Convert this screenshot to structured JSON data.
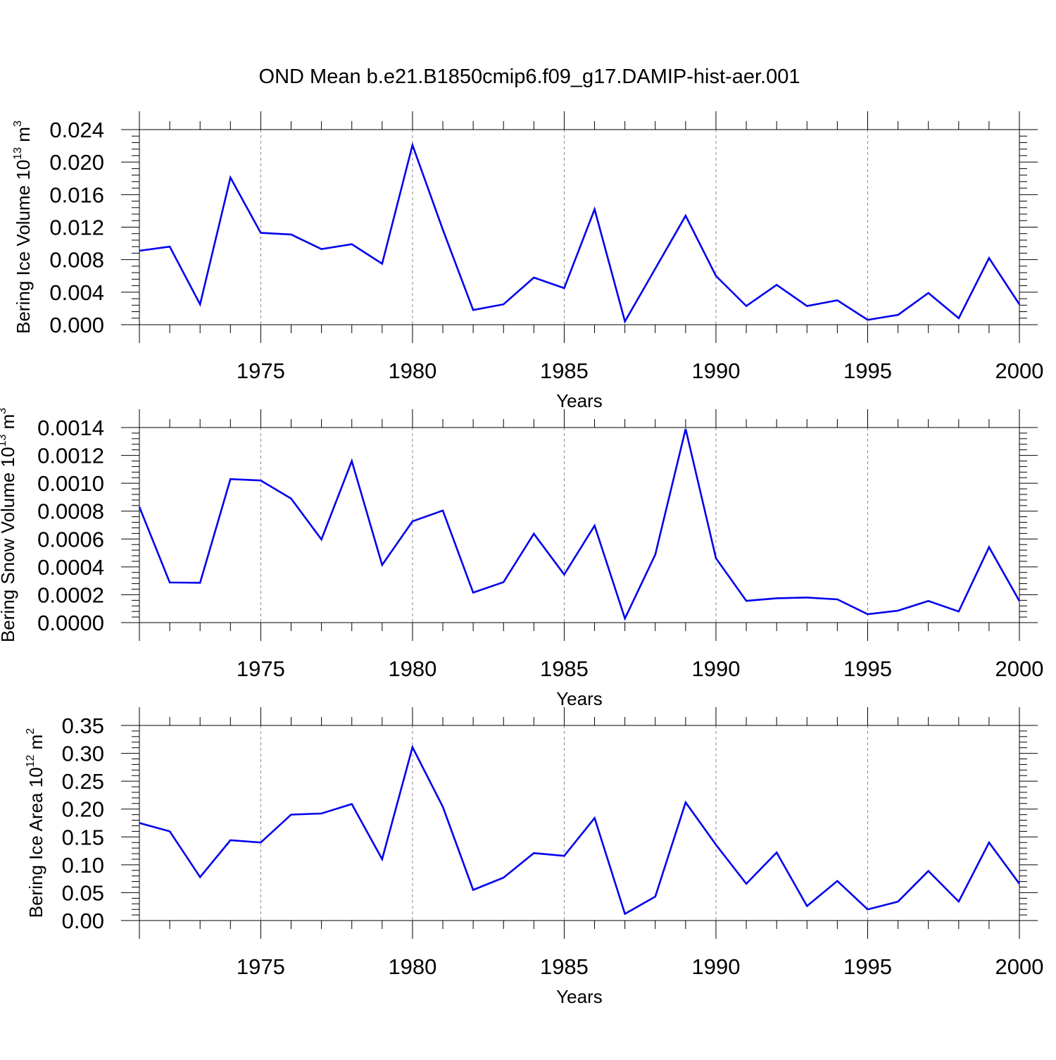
{
  "title": "OND Mean b.e21.B1850cmip6.f09_g17.DAMIP-hist-aer.001",
  "chart_data": [
    {
      "type": "line",
      "title": "",
      "xlabel": "Years",
      "ylabel": {
        "text": "Bering Ice Volume 10",
        "exp": "13",
        "unit": " m",
        "unit_exp": "3"
      },
      "xlim": [
        1971,
        2000
      ],
      "ylim": [
        0.0,
        0.024
      ],
      "xticks": [
        1975,
        1980,
        1985,
        1990,
        1995,
        2000
      ],
      "xtick_labels": [
        "1975",
        "1980",
        "1985",
        "1990",
        "1995",
        "2000"
      ],
      "yticks": [
        0.0,
        0.004,
        0.008,
        0.012,
        0.016,
        0.02,
        0.024
      ],
      "ytick_labels": [
        "0.000",
        "0.004",
        "0.008",
        "0.012",
        "0.016",
        "0.020",
        "0.024"
      ],
      "grid": "vertical dashed at labeled years",
      "color": "#0000ee",
      "series": [
        {
          "x": [
            1971,
            1972,
            1973,
            1974,
            1975,
            1976,
            1977,
            1978,
            1979,
            1980,
            1981,
            1982,
            1983,
            1984,
            1985,
            1986,
            1987,
            1988,
            1989,
            1990,
            1991,
            1992,
            1993,
            1994,
            1995,
            1996,
            1997,
            1998,
            1999,
            2000
          ],
          "values": [
            0.0091,
            0.0096,
            0.0025,
            0.0181,
            0.0113,
            0.0111,
            0.0093,
            0.0099,
            0.0075,
            0.0221,
            0.0117,
            0.0018,
            0.0025,
            0.0058,
            0.0045,
            0.0142,
            0.0004,
            0.0069,
            0.0134,
            0.006,
            0.0023,
            0.0049,
            0.0023,
            0.003,
            0.0006,
            0.0012,
            0.0039,
            0.0008,
            0.0082,
            0.0025
          ]
        }
      ]
    },
    {
      "type": "line",
      "title": "",
      "xlabel": "Years",
      "ylabel": {
        "text": "Bering Snow Volume 10",
        "exp": "13",
        "unit": " m",
        "unit_exp": "3"
      },
      "xlim": [
        1971,
        2000
      ],
      "ylim": [
        0.0,
        0.0014
      ],
      "xticks": [
        1975,
        1980,
        1985,
        1990,
        1995,
        2000
      ],
      "xtick_labels": [
        "1975",
        "1980",
        "1985",
        "1990",
        "1995",
        "2000"
      ],
      "yticks": [
        0.0,
        0.0002,
        0.0004,
        0.0006,
        0.0008,
        0.001,
        0.0012,
        0.0014
      ],
      "ytick_labels": [
        "0.0000",
        "0.0002",
        "0.0004",
        "0.0006",
        "0.0008",
        "0.0010",
        "0.0012",
        "0.0014"
      ],
      "grid": "vertical dashed at labeled years",
      "color": "#0000ee",
      "series": [
        {
          "x": [
            1971,
            1972,
            1973,
            1974,
            1975,
            1976,
            1977,
            1978,
            1979,
            1980,
            1981,
            1982,
            1983,
            1984,
            1985,
            1986,
            1987,
            1988,
            1989,
            1990,
            1991,
            1992,
            1993,
            1994,
            1995,
            1996,
            1997,
            1998,
            1999,
            2000
          ],
          "values": [
            0.00083,
            0.000288,
            0.000286,
            0.00103,
            0.00102,
            0.00089,
            0.000597,
            0.00116,
            0.000414,
            0.000727,
            0.000804,
            0.000216,
            0.00029,
            0.000638,
            0.000345,
            0.000696,
            3e-05,
            0.000488,
            0.00139,
            0.000462,
            0.000156,
            0.000175,
            0.00018,
            0.000167,
            6e-05,
            8.6e-05,
            0.000155,
            8e-05,
            0.000542,
            0.000155
          ]
        }
      ]
    },
    {
      "type": "line",
      "title": "",
      "xlabel": "Years",
      "ylabel": {
        "text": "Bering Ice Area 10",
        "exp": "12",
        "unit": " m",
        "unit_exp": "2"
      },
      "xlim": [
        1971,
        2000
      ],
      "ylim": [
        0.0,
        0.35
      ],
      "xticks": [
        1975,
        1980,
        1985,
        1990,
        1995,
        2000
      ],
      "xtick_labels": [
        "1975",
        "1980",
        "1985",
        "1990",
        "1995",
        "2000"
      ],
      "yticks": [
        0.0,
        0.05,
        0.1,
        0.15,
        0.2,
        0.25,
        0.3,
        0.35
      ],
      "ytick_labels": [
        "0.00",
        "0.05",
        "0.10",
        "0.15",
        "0.20",
        "0.25",
        "0.30",
        "0.35"
      ],
      "grid": "vertical dashed at labeled years",
      "color": "#0000ee",
      "series": [
        {
          "x": [
            1971,
            1972,
            1973,
            1974,
            1975,
            1976,
            1977,
            1978,
            1979,
            1980,
            1981,
            1982,
            1983,
            1984,
            1985,
            1986,
            1987,
            1988,
            1989,
            1990,
            1991,
            1992,
            1993,
            1994,
            1995,
            1996,
            1997,
            1998,
            1999,
            2000
          ],
          "values": [
            0.175,
            0.16,
            0.078,
            0.144,
            0.14,
            0.19,
            0.192,
            0.209,
            0.11,
            0.311,
            0.204,
            0.055,
            0.077,
            0.121,
            0.116,
            0.184,
            0.012,
            0.043,
            0.212,
            0.136,
            0.066,
            0.122,
            0.026,
            0.071,
            0.02,
            0.034,
            0.089,
            0.034,
            0.14,
            0.066
          ]
        }
      ]
    }
  ]
}
